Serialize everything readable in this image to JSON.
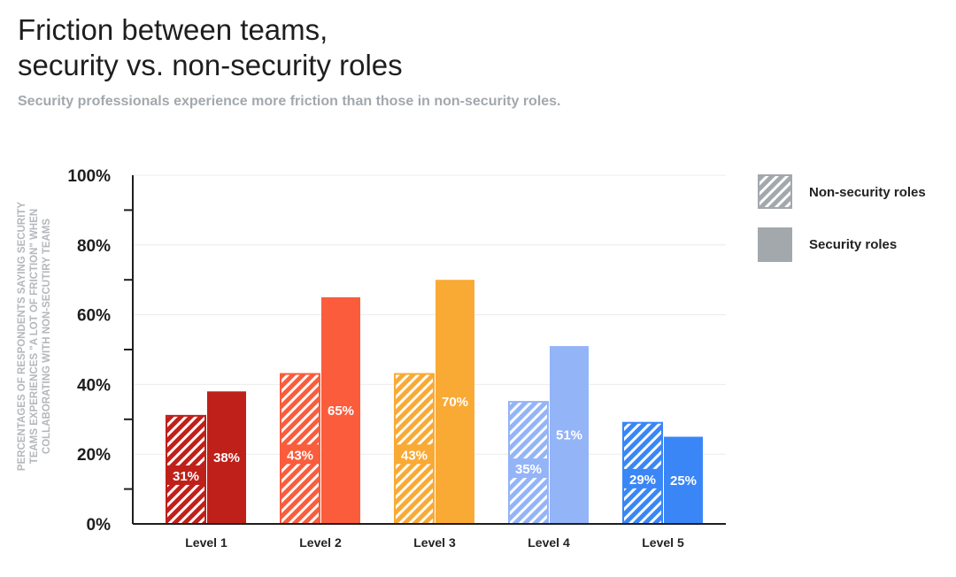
{
  "chart_data": {
    "type": "bar",
    "title": "Friction between teams,\nsecurity vs. non-security roles",
    "subtitle": "Security professionals experience more friction than those in non-security roles.",
    "ylabel": [
      "PERCENTAGES OF RESPONDENTS SAYING SECURITY",
      "TEAMS EXPERIENCES \"A LOT OF FRICTION\" WHEN",
      "COLLABORATING WITH NON-SECUTIRY TEAMS"
    ],
    "ylim": [
      0,
      100
    ],
    "yticks": [
      "0%",
      "20%",
      "40%",
      "60%",
      "80%",
      "100%"
    ],
    "grid": true,
    "legend_position": "right",
    "categories": [
      "Level 1",
      "Level 2",
      "Level 3",
      "Level 4",
      "Level 5"
    ],
    "category_colors": [
      "#c0201a",
      "#fa5c3c",
      "#f9aa35",
      "#94b4f8",
      "#3a86f7"
    ],
    "series": [
      {
        "name": "Non-security roles",
        "pattern": "hatched",
        "values": [
          31,
          43,
          43,
          35,
          29
        ],
        "labels": [
          "31%",
          "43%",
          "43%",
          "35%",
          "29%"
        ]
      },
      {
        "name": "Security roles",
        "pattern": "solid",
        "values": [
          38,
          65,
          70,
          51,
          25
        ],
        "labels": [
          "38%",
          "65%",
          "70%",
          "51%",
          "25%"
        ]
      }
    ],
    "legend_color": "#a3a8ad"
  }
}
